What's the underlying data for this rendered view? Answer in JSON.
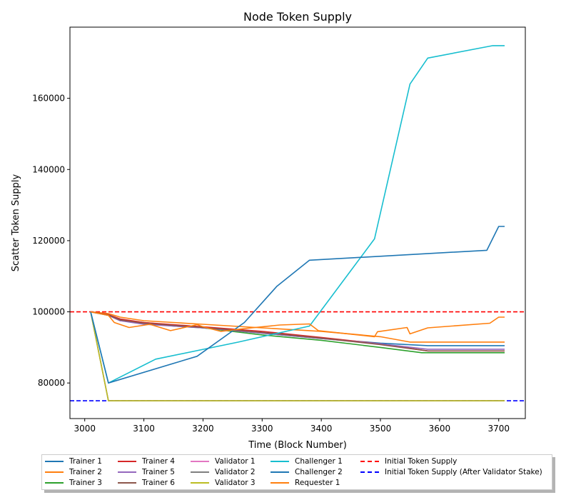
{
  "chart_data": {
    "type": "line",
    "title": "Node Token Supply",
    "xlabel": "Time (Block Number)",
    "ylabel": "Scatter Token Supply",
    "xlim": [
      2975,
      3745
    ],
    "ylim": [
      70000,
      180000
    ],
    "xticks": [
      3000,
      3100,
      3200,
      3300,
      3400,
      3500,
      3600,
      3700
    ],
    "yticks": [
      80000,
      100000,
      120000,
      140000,
      160000
    ],
    "grid": false,
    "legend_position": "bottom",
    "series": [
      {
        "name": "Trainer 1",
        "color": "#1f77b4",
        "x": [
          3010,
          3040,
          3060,
          3100,
          3150,
          3200,
          3300,
          3400,
          3500,
          3580,
          3710
        ],
        "y": [
          100000,
          99000,
          97500,
          96800,
          96000,
          95500,
          94000,
          92500,
          91200,
          90500,
          90500
        ]
      },
      {
        "name": "Trainer 2",
        "color": "#ff7f0e",
        "x": [
          3010,
          3040,
          3060,
          3100,
          3150,
          3200,
          3300,
          3400,
          3500,
          3550,
          3710
        ],
        "y": [
          100000,
          99500,
          98500,
          97500,
          97000,
          96500,
          95500,
          94500,
          93000,
          91500,
          91500
        ]
      },
      {
        "name": "Trainer 3",
        "color": "#2ca02c",
        "x": [
          3010,
          3040,
          3060,
          3100,
          3200,
          3300,
          3400,
          3500,
          3570,
          3710
        ],
        "y": [
          100000,
          99000,
          97800,
          97000,
          95500,
          93500,
          92000,
          90000,
          88500,
          88500
        ]
      },
      {
        "name": "Trainer 4",
        "color": "#d62728",
        "x": [
          3010,
          3040,
          3060,
          3100,
          3200,
          3300,
          3400,
          3500,
          3580,
          3710
        ],
        "y": [
          100000,
          99200,
          98000,
          97000,
          95800,
          94500,
          92800,
          91000,
          89000,
          89000
        ]
      },
      {
        "name": "Trainer 5",
        "color": "#9467bd",
        "x": [
          3010,
          3040,
          3060,
          3100,
          3200,
          3300,
          3400,
          3500,
          3580,
          3710
        ],
        "y": [
          100000,
          99000,
          97500,
          96500,
          95500,
          94000,
          92500,
          91000,
          89500,
          89500
        ]
      },
      {
        "name": "Trainer 6",
        "color": "#8c564b",
        "x": [
          3010,
          3040,
          3060,
          3100,
          3200,
          3300,
          3400,
          3500,
          3580,
          3710
        ],
        "y": [
          100000,
          99100,
          97700,
          96800,
          95600,
          94200,
          92600,
          90800,
          89000,
          89000
        ]
      },
      {
        "name": "Validator 1",
        "color": "#e377c2",
        "x": [
          3010,
          3040,
          3710
        ],
        "y": [
          100000,
          75000,
          75000
        ]
      },
      {
        "name": "Validator 2",
        "color": "#7f7f7f",
        "x": [
          3010,
          3040,
          3710
        ],
        "y": [
          100000,
          75000,
          75000
        ]
      },
      {
        "name": "Validator 3",
        "color": "#bcbd22",
        "x": [
          3010,
          3040,
          3710
        ],
        "y": [
          100000,
          75000,
          75000
        ]
      },
      {
        "name": "Challenger 1",
        "color": "#17becf",
        "x": [
          3010,
          3040,
          3120,
          3260,
          3380,
          3490,
          3550,
          3580,
          3690,
          3710
        ],
        "y": [
          100000,
          80000,
          86700,
          91500,
          96000,
          120500,
          164000,
          171300,
          174800,
          174800
        ]
      },
      {
        "name": "Challenger 2",
        "color": "#1f77b4",
        "x": [
          3010,
          3040,
          3190,
          3270,
          3325,
          3380,
          3680,
          3700,
          3710
        ],
        "y": [
          100000,
          80000,
          87500,
          97000,
          107200,
          114500,
          117300,
          124000,
          124000
        ]
      },
      {
        "name": "Requester 1",
        "color": "#ff7f0e",
        "x": [
          3010,
          3040,
          3050,
          3075,
          3110,
          3145,
          3190,
          3200,
          3230,
          3270,
          3330,
          3380,
          3395,
          3490,
          3495,
          3545,
          3550,
          3580,
          3685,
          3700,
          3710
        ],
        "y": [
          100000,
          99000,
          97000,
          95600,
          96500,
          94700,
          96400,
          95800,
          94500,
          95300,
          96300,
          96600,
          94700,
          93000,
          94400,
          95600,
          93800,
          95500,
          96800,
          98500,
          98500
        ]
      }
    ],
    "reference_lines": [
      {
        "name": "Initial Token Supply",
        "y": 100000,
        "color": "#ff0000",
        "style": "dashed"
      },
      {
        "name": "Initial Token Supply (After Validator Stake)",
        "y": 75000,
        "color": "#0000ff",
        "style": "dashed"
      }
    ],
    "legend_rows": [
      [
        "Trainer 1",
        "Trainer 4",
        "Validator 1",
        "Challenger 1",
        "Initial Token Supply"
      ],
      [
        "Trainer 2",
        "Trainer 5",
        "Validator 2",
        "Challenger 2",
        "Initial Token Supply (After Validator Stake)"
      ],
      [
        "Trainer 3",
        "Trainer 6",
        "Validator 3",
        "Requester 1"
      ]
    ]
  }
}
